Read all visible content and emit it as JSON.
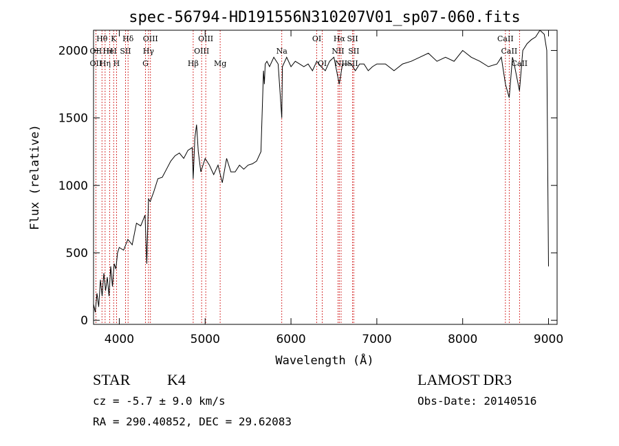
{
  "chart_data": {
    "type": "line",
    "title": "spec-56794-HD191556N310207V01_sp07-060.fits",
    "xlabel": "Wavelength (Å)",
    "ylabel": "Flux (relative)",
    "xlim": [
      3700,
      9100
    ],
    "ylim": [
      -30,
      2150
    ],
    "xticks": [
      4000,
      5000,
      6000,
      7000,
      8000,
      9000
    ],
    "yticks": [
      0,
      500,
      1000,
      1500,
      2000
    ],
    "grid": false,
    "series": [
      {
        "x": [
          3700,
          3720,
          3740,
          3760,
          3780,
          3800,
          3820,
          3840,
          3860,
          3880,
          3900,
          3920,
          3940,
          3960,
          3980,
          4000,
          4050,
          4100,
          4150,
          4200,
          4250,
          4300,
          4320,
          4340,
          4360,
          4400,
          4450,
          4500,
          4550,
          4600,
          4650,
          4700,
          4750,
          4800,
          4850,
          4861,
          4880,
          4900,
          4920,
          4950,
          5000,
          5050,
          5100,
          5150,
          5200,
          5250,
          5300,
          5350,
          5400,
          5450,
          5500,
          5550,
          5600,
          5650,
          5680,
          5690,
          5700,
          5720,
          5750,
          5800,
          5850,
          5893,
          5900,
          5950,
          6000,
          6050,
          6100,
          6150,
          6200,
          6250,
          6300,
          6350,
          6400,
          6450,
          6500,
          6563,
          6600,
          6650,
          6700,
          6750,
          6800,
          6850,
          6900,
          6950,
          7000,
          7100,
          7200,
          7300,
          7400,
          7500,
          7600,
          7700,
          7800,
          7900,
          8000,
          8100,
          8200,
          8300,
          8400,
          8450,
          8498,
          8542,
          8580,
          8600,
          8662,
          8700,
          8750,
          8800,
          8850,
          8900,
          8950,
          8980,
          9000
        ],
        "values": [
          120,
          60,
          200,
          100,
          300,
          180,
          350,
          220,
          320,
          180,
          400,
          250,
          420,
          380,
          500,
          540,
          520,
          600,
          560,
          720,
          700,
          780,
          420,
          900,
          880,
          950,
          1050,
          1060,
          1120,
          1180,
          1220,
          1240,
          1200,
          1260,
          1280,
          1050,
          1350,
          1450,
          1250,
          1100,
          1200,
          1150,
          1080,
          1150,
          1020,
          1200,
          1100,
          1100,
          1150,
          1120,
          1150,
          1160,
          1180,
          1250,
          1850,
          1750,
          1900,
          1920,
          1880,
          1950,
          1900,
          1500,
          1880,
          1950,
          1880,
          1920,
          1900,
          1880,
          1900,
          1850,
          1920,
          1880,
          1850,
          1920,
          1950,
          1750,
          1900,
          1900,
          1900,
          1850,
          1900,
          1900,
          1850,
          1880,
          1900,
          1900,
          1850,
          1900,
          1920,
          1950,
          1980,
          1920,
          1950,
          1920,
          2000,
          1950,
          1920,
          1880,
          1900,
          1950,
          1750,
          1650,
          1950,
          1900,
          1700,
          2000,
          2050,
          2080,
          2100,
          2150,
          2120,
          2000,
          400
        ]
      }
    ],
    "lines": [
      {
        "label": "Hθ",
        "x": 3798,
        "row": 0
      },
      {
        "label": "OII",
        "x": 3727,
        "row": 1
      },
      {
        "label": "OII",
        "x": 3727,
        "row": 2
      },
      {
        "label": "Hη",
        "x": 3835,
        "row": 2
      },
      {
        "label": "H",
        "x": 3889,
        "row": 1
      },
      {
        "label": "HeI",
        "x": 3889,
        "row": 1
      },
      {
        "label": "K",
        "x": 3934,
        "row": 0
      },
      {
        "label": "H",
        "x": 3968,
        "row": 2
      },
      {
        "label": "SII",
        "x": 4072,
        "row": 1
      },
      {
        "label": "Hδ",
        "x": 4102,
        "row": 0
      },
      {
        "label": "OIII",
        "x": 4363,
        "row": 0
      },
      {
        "label": "Hγ",
        "x": 4340,
        "row": 1
      },
      {
        "label": "G",
        "x": 4305,
        "row": 2
      },
      {
        "label": "Hβ",
        "x": 4861,
        "row": 2
      },
      {
        "label": "OIII",
        "x": 4959,
        "row": 1
      },
      {
        "label": "OIII",
        "x": 5007,
        "row": 0
      },
      {
        "label": "Mg",
        "x": 5175,
        "row": 2
      },
      {
        "label": "Na",
        "x": 5893,
        "row": 1
      },
      {
        "label": "OI",
        "x": 6300,
        "row": 0
      },
      {
        "label": "OI",
        "x": 6364,
        "row": 2
      },
      {
        "label": "Hα",
        "x": 6563,
        "row": 0
      },
      {
        "label": "NII",
        "x": 6548,
        "row": 1
      },
      {
        "label": "NII",
        "x": 6584,
        "row": 2
      },
      {
        "label": "SII",
        "x": 6717,
        "row": 0
      },
      {
        "label": "SII",
        "x": 6731,
        "row": 1
      },
      {
        "label": "SII",
        "x": 6717,
        "row": 2
      },
      {
        "label": "CaII",
        "x": 8498,
        "row": 0
      },
      {
        "label": "CaII",
        "x": 8542,
        "row": 1
      },
      {
        "label": "CaII",
        "x": 8662,
        "row": 2
      }
    ]
  },
  "info": {
    "object_type": "STAR",
    "subclass": "K4",
    "survey": "LAMOST DR3",
    "cz": "cz = -5.7 ± 9.0 km/s",
    "obs_date": "Obs-Date: 20140516",
    "radec": "RA = 290.40852, DEC =  29.62083"
  }
}
